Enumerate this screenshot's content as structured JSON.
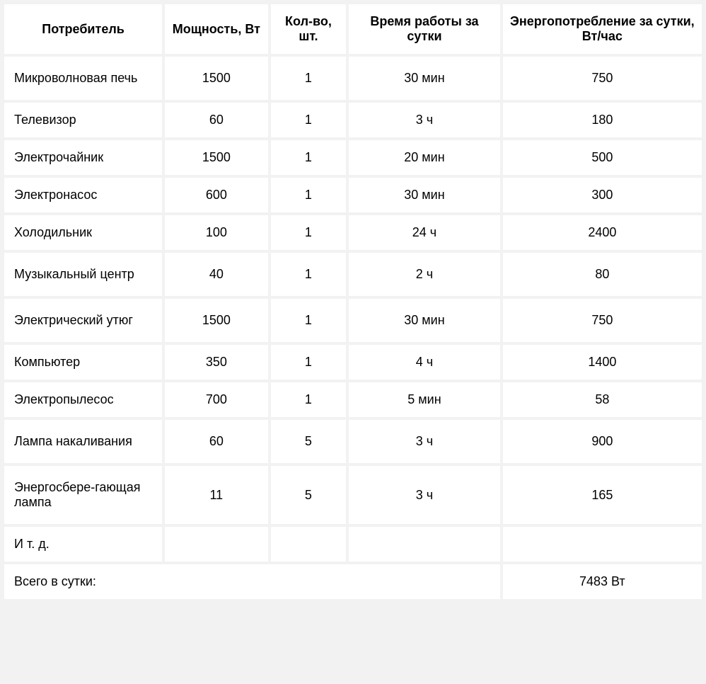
{
  "table": {
    "headers": {
      "consumer": "Потребитель",
      "power": "Мощность, Вт",
      "qty": "Кол-во, шт.",
      "time": "Время работы за сутки",
      "energy": "Энергопотребление за сутки, Вт/час"
    },
    "rows": [
      {
        "consumer": "Микроволновая печь",
        "power": "1500",
        "qty": "1",
        "time": "30 мин",
        "energy": "750",
        "tall": true
      },
      {
        "consumer": "Телевизор",
        "power": "60",
        "qty": "1",
        "time": "3 ч",
        "energy": "180"
      },
      {
        "consumer": "Электрочайник",
        "power": "1500",
        "qty": "1",
        "time": "20 мин",
        "energy": "500"
      },
      {
        "consumer": "Электронасос",
        "power": "600",
        "qty": "1",
        "time": "30 мин",
        "energy": "300"
      },
      {
        "consumer": "Холодильник",
        "power": "100",
        "qty": "1",
        "time": "24 ч",
        "energy": "2400"
      },
      {
        "consumer": "Музыкальный центр",
        "power": "40",
        "qty": "1",
        "time": "2 ч",
        "energy": "80",
        "tall": true
      },
      {
        "consumer": "Электрический утюг",
        "power": "1500",
        "qty": "1",
        "time": "30 мин",
        "energy": "750",
        "tall": true
      },
      {
        "consumer": "Компьютер",
        "power": "350",
        "qty": "1",
        "time": "4 ч",
        "energy": "1400"
      },
      {
        "consumer": "Электропылесос",
        "power": "700",
        "qty": "1",
        "time": "5 мин",
        "energy": "58"
      },
      {
        "consumer": "Лампа накаливания",
        "power": "60",
        "qty": "5",
        "time": "3 ч",
        "energy": "900",
        "tall": true
      },
      {
        "consumer": "Энергосбере-гающая лампа",
        "power": "11",
        "qty": "5",
        "time": "3 ч",
        "energy": "165",
        "tall": true
      },
      {
        "consumer": "И т. д.",
        "power": "",
        "qty": "",
        "time": "",
        "energy": ""
      }
    ],
    "total": {
      "label": "Всего в сутки:",
      "value": "7483 Вт"
    },
    "styling": {
      "background_color": "#f2f2f2",
      "cell_background": "#ffffff",
      "text_color": "#000000",
      "font_size": 18,
      "header_font_weight": "bold",
      "border_spacing": 4,
      "column_widths_pct": {
        "consumer": 23,
        "power": 15,
        "qty": 11,
        "time": 22,
        "energy": 29
      }
    }
  }
}
